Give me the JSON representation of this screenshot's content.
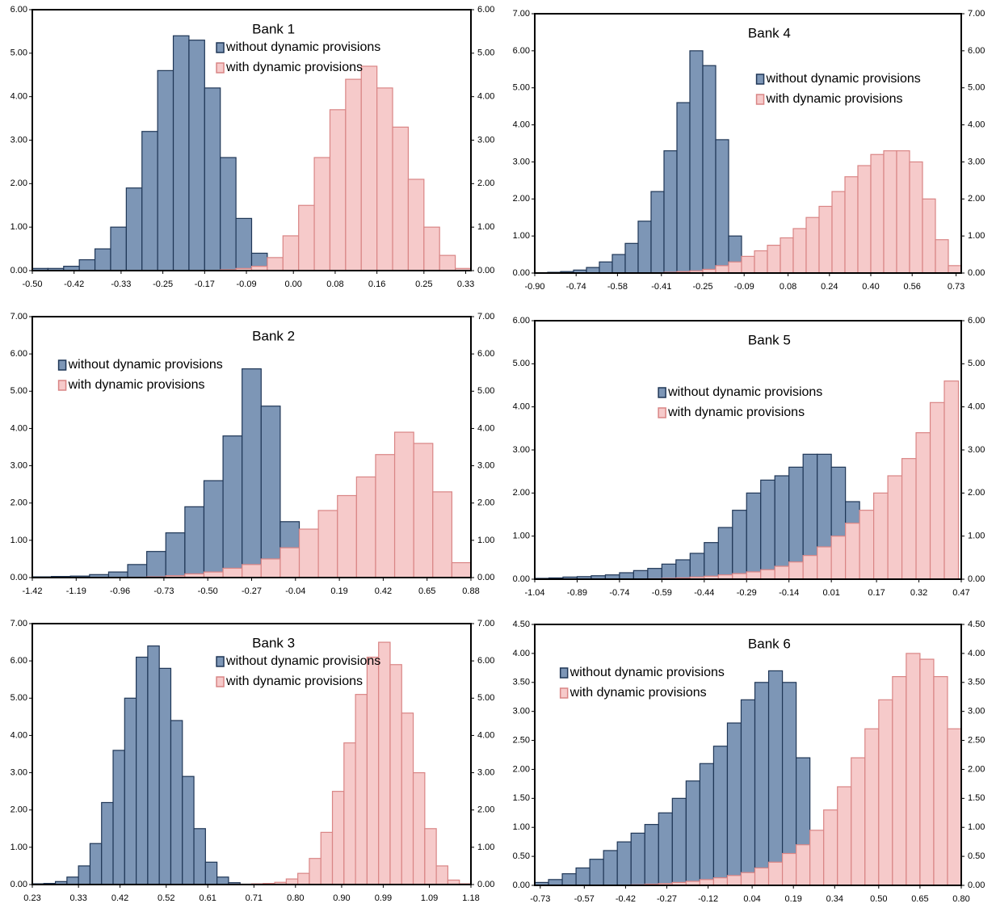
{
  "chart_data": [
    {
      "type": "histogram",
      "title": "Bank 1",
      "legend": "upper center",
      "bins": [
        -0.5,
        -0.47,
        -0.44,
        -0.41,
        -0.38,
        -0.35,
        -0.32,
        -0.29,
        -0.26,
        -0.23,
        -0.2,
        -0.17,
        -0.14,
        -0.11,
        -0.08,
        -0.05,
        -0.02,
        0.01,
        0.04,
        0.07,
        0.1,
        0.13,
        0.16,
        0.19,
        0.22,
        0.25,
        0.28,
        0.31,
        0.34
      ],
      "series": [
        {
          "name": "without dynamic provisions",
          "color": "#7d96b6",
          "edgecolor": "#1f3656",
          "values": [
            0.05,
            0.05,
            0.1,
            0.25,
            0.5,
            1.0,
            1.9,
            3.2,
            4.6,
            5.4,
            5.3,
            4.2,
            2.6,
            1.2,
            0.4,
            0.1,
            0.02,
            0,
            0,
            0,
            0,
            0,
            0,
            0,
            0,
            0,
            0,
            0
          ]
        },
        {
          "name": "with dynamic provisions",
          "color": "#f6caca",
          "edgecolor": "#d98585",
          "values": [
            0,
            0,
            0,
            0,
            0,
            0,
            0,
            0,
            0,
            0,
            0,
            0,
            0.02,
            0.05,
            0.1,
            0.3,
            0.8,
            1.5,
            2.6,
            3.7,
            4.4,
            4.7,
            4.2,
            3.3,
            2.1,
            1.0,
            0.35,
            0.05
          ]
        }
      ],
      "xlim": [
        -0.5,
        0.34
      ],
      "xticks": [
        {
          "value": -0.5,
          "label": "-0.50"
        },
        -0.42,
        -0.33,
        -0.25,
        -0.17,
        -0.09,
        {
          "value": 0,
          "label": "0.00"
        },
        0.08,
        0.16,
        0.25,
        0.33
      ],
      "ylim": [
        0,
        6
      ],
      "yticks": [
        {
          "value": 0,
          "label": "0.00"
        },
        {
          "value": 1,
          "label": "1.00"
        },
        {
          "value": 2,
          "label": "2.00"
        },
        {
          "value": 3,
          "label": "3.00"
        },
        {
          "value": 4,
          "label": "4.00"
        },
        {
          "value": 5,
          "label": "5.00"
        },
        {
          "value": 6,
          "label": "6.00"
        }
      ]
    },
    {
      "type": "histogram",
      "title": "Bank 2",
      "legend": "upper left",
      "bins": [
        -1.42,
        -1.32,
        -1.22,
        -1.12,
        -1.02,
        -0.92,
        -0.82,
        -0.72,
        -0.62,
        -0.52,
        -0.42,
        -0.32,
        -0.22,
        -0.12,
        -0.02,
        0.08,
        0.18,
        0.28,
        0.38,
        0.48,
        0.58,
        0.68,
        0.78,
        0.88
      ],
      "series": [
        {
          "name": "without dynamic provisions",
          "color": "#7d96b6",
          "edgecolor": "#1f3656",
          "values": [
            0.02,
            0.03,
            0.04,
            0.08,
            0.15,
            0.35,
            0.7,
            1.2,
            1.9,
            2.6,
            3.8,
            5.6,
            4.6,
            1.5,
            0,
            0,
            0,
            0,
            0,
            0,
            0,
            0,
            0
          ]
        },
        {
          "name": "with dynamic provisions",
          "color": "#f6caca",
          "edgecolor": "#d98585",
          "values": [
            0,
            0,
            0,
            0,
            0,
            0.01,
            0.02,
            0.05,
            0.1,
            0.15,
            0.25,
            0.35,
            0.5,
            0.8,
            1.3,
            1.8,
            2.2,
            2.7,
            3.3,
            3.9,
            3.6,
            2.3,
            0.4
          ]
        }
      ],
      "xlim": [
        -1.42,
        0.88
      ],
      "xticks": [
        -1.42,
        -1.19,
        -0.96,
        -0.73,
        {
          "value": -0.5,
          "label": "-0.50"
        },
        -0.27,
        -0.04,
        0.19,
        0.42,
        0.65,
        0.88
      ],
      "ylim": [
        0,
        7
      ],
      "yticks": [
        {
          "value": 0,
          "label": "0.00"
        },
        {
          "value": 1,
          "label": "1.00"
        },
        {
          "value": 2,
          "label": "2.00"
        },
        {
          "value": 3,
          "label": "3.00"
        },
        {
          "value": 4,
          "label": "4.00"
        },
        {
          "value": 5,
          "label": "5.00"
        },
        {
          "value": 6,
          "label": "6.00"
        },
        {
          "value": 7,
          "label": "7.00"
        }
      ]
    },
    {
      "type": "histogram",
      "title": "Bank 3",
      "legend": "upper center",
      "bins": [
        0.23,
        0.255,
        0.28,
        0.305,
        0.33,
        0.355,
        0.38,
        0.405,
        0.43,
        0.455,
        0.48,
        0.505,
        0.53,
        0.555,
        0.58,
        0.605,
        0.63,
        0.655,
        0.68,
        0.705,
        0.73,
        0.755,
        0.78,
        0.805,
        0.83,
        0.855,
        0.88,
        0.905,
        0.93,
        0.955,
        0.98,
        1.005,
        1.03,
        1.055,
        1.08,
        1.105,
        1.13,
        1.155,
        1.18
      ],
      "series": [
        {
          "name": "without dynamic provisions",
          "color": "#7d96b6",
          "edgecolor": "#1f3656",
          "values": [
            0.02,
            0.03,
            0.08,
            0.2,
            0.5,
            1.1,
            2.2,
            3.6,
            5.0,
            6.1,
            6.4,
            5.8,
            4.4,
            2.9,
            1.5,
            0.6,
            0.2,
            0.05,
            0.01,
            0,
            0,
            0,
            0,
            0,
            0,
            0,
            0,
            0,
            0,
            0,
            0,
            0,
            0,
            0,
            0,
            0,
            0,
            0
          ]
        },
        {
          "name": "with dynamic provisions",
          "color": "#f6caca",
          "edgecolor": "#d98585",
          "values": [
            0,
            0,
            0,
            0,
            0,
            0,
            0,
            0,
            0,
            0,
            0,
            0,
            0,
            0,
            0,
            0,
            0,
            0.01,
            0.01,
            0.02,
            0.03,
            0.06,
            0.15,
            0.3,
            0.7,
            1.4,
            2.5,
            3.8,
            5.1,
            6.1,
            6.5,
            5.9,
            4.6,
            3.0,
            1.5,
            0.5,
            0.12,
            0.02
          ]
        }
      ],
      "xlim": [
        0.23,
        1.18
      ],
      "xticks": [
        0.23,
        0.33,
        0.42,
        0.52,
        0.61,
        0.71,
        {
          "value": 0.8,
          "label": "0.80"
        },
        {
          "value": 0.9,
          "label": "0.90"
        },
        0.99,
        1.09,
        1.18
      ],
      "ylim": [
        0,
        7
      ],
      "yticks": [
        {
          "value": 0,
          "label": "0.00"
        },
        {
          "value": 1,
          "label": "1.00"
        },
        {
          "value": 2,
          "label": "2.00"
        },
        {
          "value": 3,
          "label": "3.00"
        },
        {
          "value": 4,
          "label": "4.00"
        },
        {
          "value": 5,
          "label": "5.00"
        },
        {
          "value": 6,
          "label": "6.00"
        },
        {
          "value": 7,
          "label": "7.00"
        }
      ]
    },
    {
      "type": "histogram",
      "title": "Bank 4",
      "legend": "upper right",
      "bins": [
        -0.9,
        -0.85,
        -0.8,
        -0.75,
        -0.7,
        -0.65,
        -0.6,
        -0.55,
        -0.5,
        -0.45,
        -0.4,
        -0.35,
        -0.3,
        -0.25,
        -0.2,
        -0.15,
        -0.1,
        -0.05,
        0,
        0.05,
        0.1,
        0.15,
        0.2,
        0.25,
        0.3,
        0.35,
        0.4,
        0.45,
        0.5,
        0.55,
        0.6,
        0.65,
        0.7,
        0.75
      ],
      "series": [
        {
          "name": "without dynamic provisions",
          "color": "#7d96b6",
          "edgecolor": "#1f3656",
          "values": [
            0.01,
            0.02,
            0.04,
            0.08,
            0.15,
            0.3,
            0.5,
            0.8,
            1.4,
            2.2,
            3.3,
            4.6,
            6.0,
            5.6,
            3.6,
            1.0,
            0,
            0,
            0,
            0,
            0,
            0,
            0,
            0,
            0,
            0,
            0,
            0,
            0,
            0,
            0,
            0,
            0
          ]
        },
        {
          "name": "with dynamic provisions",
          "color": "#f6caca",
          "edgecolor": "#d98585",
          "values": [
            0,
            0,
            0,
            0,
            0,
            0,
            0,
            0,
            0,
            0.01,
            0.02,
            0.04,
            0.06,
            0.1,
            0.2,
            0.3,
            0.45,
            0.6,
            0.75,
            0.95,
            1.2,
            1.5,
            1.8,
            2.2,
            2.6,
            2.9,
            3.2,
            3.3,
            3.3,
            3.0,
            2.0,
            0.9,
            0.2
          ]
        }
      ],
      "xlim": [
        -0.9,
        0.75
      ],
      "xticks": [
        {
          "value": -0.9,
          "label": "-0.90"
        },
        -0.74,
        -0.58,
        -0.41,
        -0.25,
        -0.09,
        0.08,
        0.24,
        {
          "value": 0.4,
          "label": "0.40"
        },
        0.56,
        0.73
      ],
      "ylim": [
        0,
        7
      ],
      "yticks": [
        {
          "value": 0,
          "label": "0.00"
        },
        {
          "value": 1,
          "label": "1.00"
        },
        {
          "value": 2,
          "label": "2.00"
        },
        {
          "value": 3,
          "label": "3.00"
        },
        {
          "value": 4,
          "label": "4.00"
        },
        {
          "value": 5,
          "label": "5.00"
        },
        {
          "value": 6,
          "label": "6.00"
        },
        {
          "value": 7,
          "label": "7.00"
        }
      ]
    },
    {
      "type": "histogram",
      "title": "Bank 5",
      "legend": "center",
      "bins": [
        -1.04,
        -0.99,
        -0.94,
        -0.89,
        -0.84,
        -0.79,
        -0.74,
        -0.69,
        -0.64,
        -0.59,
        -0.54,
        -0.49,
        -0.44,
        -0.39,
        -0.34,
        -0.29,
        -0.24,
        -0.19,
        -0.14,
        -0.09,
        -0.04,
        0.01,
        0.06,
        0.11,
        0.16,
        0.21,
        0.26,
        0.31,
        0.36,
        0.41,
        0.46
      ],
      "series": [
        {
          "name": "without dynamic provisions",
          "color": "#7d96b6",
          "edgecolor": "#1f3656",
          "values": [
            0.02,
            0.03,
            0.05,
            0.06,
            0.08,
            0.1,
            0.15,
            0.2,
            0.25,
            0.35,
            0.45,
            0.6,
            0.85,
            1.2,
            1.6,
            2.0,
            2.3,
            2.4,
            2.6,
            2.9,
            2.9,
            2.6,
            1.8,
            0.6,
            0.05,
            0,
            0,
            0,
            0,
            0
          ]
        },
        {
          "name": "with dynamic provisions",
          "color": "#f6caca",
          "edgecolor": "#d98585",
          "values": [
            0,
            0,
            0,
            0,
            0,
            0,
            0,
            0,
            0.01,
            0.02,
            0.03,
            0.05,
            0.07,
            0.1,
            0.13,
            0.17,
            0.22,
            0.3,
            0.4,
            0.55,
            0.75,
            1.0,
            1.3,
            1.6,
            2.0,
            2.4,
            2.8,
            3.4,
            4.1,
            4.6
          ]
        }
      ],
      "xlim": [
        -1.04,
        0.47
      ],
      "xticks": [
        -1.04,
        -0.89,
        -0.74,
        -0.59,
        -0.44,
        -0.29,
        -0.14,
        0.01,
        0.17,
        0.32,
        0.47
      ],
      "ylim": [
        0,
        6
      ],
      "yticks": [
        {
          "value": 0,
          "label": "0.00"
        },
        {
          "value": 1,
          "label": "1.00"
        },
        {
          "value": 2,
          "label": "2.00"
        },
        {
          "value": 3,
          "label": "3.00"
        },
        {
          "value": 4,
          "label": "4.00"
        },
        {
          "value": 5,
          "label": "5.00"
        },
        {
          "value": 6,
          "label": "6.00"
        }
      ]
    },
    {
      "type": "histogram",
      "title": "Bank 6",
      "legend": "upper left",
      "bins": [
        -0.75,
        -0.7,
        -0.65,
        -0.6,
        -0.55,
        -0.5,
        -0.45,
        -0.4,
        -0.35,
        -0.3,
        -0.25,
        -0.2,
        -0.15,
        -0.1,
        -0.05,
        0,
        0.05,
        0.1,
        0.15,
        0.2,
        0.25,
        0.3,
        0.35,
        0.4,
        0.45,
        0.5,
        0.55,
        0.6,
        0.65,
        0.7,
        0.75,
        0.8
      ],
      "series": [
        {
          "name": "without dynamic provisions",
          "color": "#7d96b6",
          "edgecolor": "#1f3656",
          "values": [
            0.05,
            0.1,
            0.2,
            0.3,
            0.45,
            0.6,
            0.75,
            0.9,
            1.05,
            1.25,
            1.5,
            1.8,
            2.1,
            2.4,
            2.8,
            3.2,
            3.5,
            3.7,
            3.5,
            2.2,
            0.7,
            0.05,
            0,
            0,
            0,
            0,
            0,
            0,
            0,
            0,
            0
          ]
        },
        {
          "name": "with dynamic provisions",
          "color": "#f6caca",
          "edgecolor": "#d98585",
          "values": [
            0,
            0,
            0,
            0,
            0,
            0,
            0,
            0.01,
            0.02,
            0.03,
            0.05,
            0.07,
            0.1,
            0.13,
            0.17,
            0.22,
            0.3,
            0.4,
            0.55,
            0.7,
            0.95,
            1.3,
            1.7,
            2.2,
            2.7,
            3.2,
            3.6,
            4.0,
            3.9,
            3.6,
            2.7
          ]
        }
      ],
      "xlim": [
        -0.75,
        0.8
      ],
      "xticks": [
        -0.73,
        -0.57,
        -0.42,
        -0.27,
        -0.12,
        0.04,
        0.19,
        0.34,
        {
          "value": 0.5,
          "label": "0.50"
        },
        0.65,
        {
          "value": 0.8,
          "label": "0.80"
        }
      ],
      "ylim": [
        0,
        4.5
      ],
      "yticks": [
        {
          "value": 0,
          "label": "0.00"
        },
        {
          "value": 0.5,
          "label": "0.50"
        },
        {
          "value": 1,
          "label": "1.00"
        },
        {
          "value": 1.5,
          "label": "1.50"
        },
        {
          "value": 2,
          "label": "2.00"
        },
        {
          "value": 2.5,
          "label": "2.50"
        },
        {
          "value": 3,
          "label": "3.00"
        },
        {
          "value": 3.5,
          "label": "3.50"
        },
        {
          "value": 4,
          "label": "4.00"
        },
        {
          "value": 4.5,
          "label": "4.50"
        }
      ]
    }
  ]
}
